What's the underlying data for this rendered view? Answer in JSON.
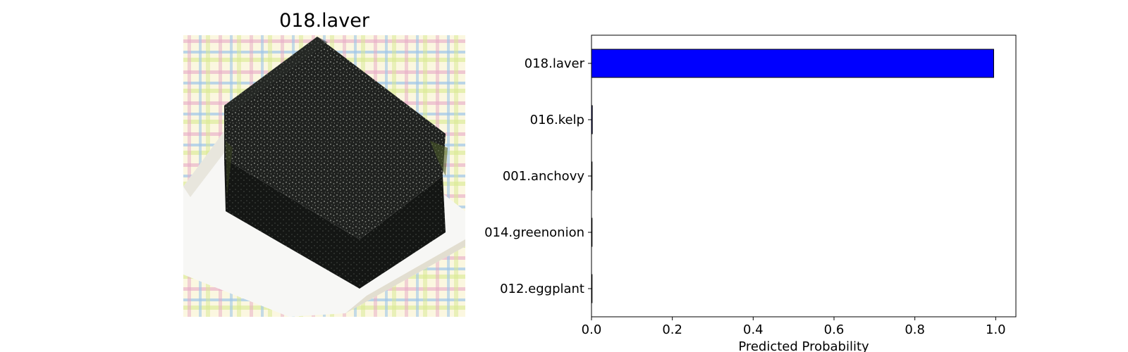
{
  "image_panel": {
    "title": "018.laver",
    "photo_icon": "stack-of-laver-sheets-on-plaid-cloth"
  },
  "chart_data": {
    "type": "bar",
    "orientation": "horizontal",
    "categories": [
      "018.laver",
      "016.kelp",
      "001.anchovy",
      "014.greenonion",
      "012.eggplant"
    ],
    "values": [
      0.995,
      0.002,
      0.001,
      0.001,
      0.001
    ],
    "title": "",
    "xlabel": "Predicted Probability",
    "ylabel": "",
    "xlim": [
      0,
      1.05
    ],
    "xticks": [
      "0.0",
      "0.2",
      "0.4",
      "0.6",
      "0.8",
      "1.0"
    ],
    "grid": false,
    "bar_color": "#0000ff",
    "edge_color": "#000000"
  }
}
